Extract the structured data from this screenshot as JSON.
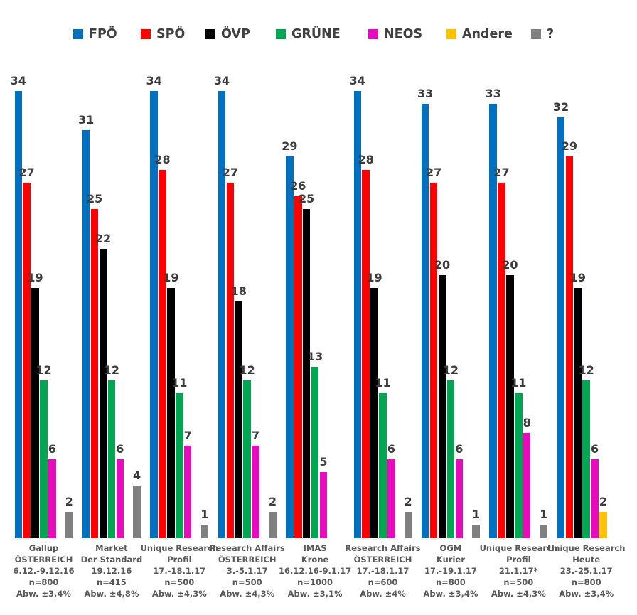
{
  "colors": {
    "fpoe": "#0070C0",
    "spoe": "#FF0000",
    "oevp": "#000000",
    "gruene": "#00A651",
    "neos": "#E60CBE",
    "andere": "#FFC000",
    "unknown": "#808080",
    "value_label": "#3C3C3C",
    "legend_text": "#404040",
    "footer_text": "#595959"
  },
  "chart_data": {
    "type": "bar",
    "title": "",
    "ylim": [
      0,
      34
    ],
    "grid": false,
    "legend_position": "top",
    "series_names": [
      "FPÖ",
      "SPÖ",
      "ÖVP",
      "GRÜNE",
      "NEOS",
      "Andere",
      "?"
    ],
    "series_slugs": [
      "fpoe",
      "spoe",
      "oevp",
      "gruene",
      "neos",
      "andere",
      "unknown"
    ],
    "series_colors": [
      "#0070C0",
      "#FF0000",
      "#000000",
      "#00A651",
      "#E60CBE",
      "#FFC000",
      "#808080"
    ],
    "groups": [
      {
        "label_lines": [
          "Gallup",
          "ÖSTERREICH",
          "6.12.-9.12.16",
          "n=800",
          "Abw. ±3,4%"
        ],
        "values": [
          34,
          27,
          19,
          12,
          6,
          null,
          2
        ]
      },
      {
        "label_lines": [
          "Market",
          "Der Standard",
          "19.12.16",
          "n=415",
          "Abw. ±4,8%"
        ],
        "values": [
          31,
          25,
          22,
          12,
          6,
          null,
          4
        ]
      },
      {
        "label_lines": [
          "Unique Research",
          "Profil",
          "17.-18.1.17",
          "n=500",
          "Abw. ±4,3%"
        ],
        "values": [
          34,
          28,
          19,
          11,
          7,
          null,
          1
        ]
      },
      {
        "label_lines": [
          "Research Affairs",
          "ÖSTERREICH",
          "3.-5.1.17",
          "n=500",
          "Abw. ±4,3%"
        ],
        "values": [
          34,
          27,
          18,
          12,
          7,
          null,
          2
        ]
      },
      {
        "label_lines": [
          "IMAS",
          "Krone",
          "16.12.16-9.1.17",
          "n=1000",
          "Abw. ±3,1%"
        ],
        "values": [
          29,
          26,
          25,
          13,
          5,
          null,
          null
        ]
      },
      {
        "label_lines": [
          "Research Affairs",
          "ÖSTERREICH",
          "17.-18.1.17",
          "n=600",
          "Abw. ±4%"
        ],
        "values": [
          34,
          28,
          19,
          11,
          6,
          null,
          2
        ]
      },
      {
        "label_lines": [
          "OGM",
          "Kurier",
          "17.-19.1.17",
          "n=800",
          "Abw. ±3,4%"
        ],
        "values": [
          33,
          27,
          20,
          12,
          6,
          null,
          1
        ]
      },
      {
        "label_lines": [
          "Unique Research",
          "Profil",
          "21.1.17*",
          "n=500",
          "Abw. ±4,3%"
        ],
        "values": [
          33,
          27,
          20,
          11,
          8,
          null,
          1
        ]
      },
      {
        "label_lines": [
          "Unique Research",
          "Heute",
          "23.-25.1.17",
          "n=800",
          "Abw. ±3,4%"
        ],
        "values": [
          32,
          29,
          19,
          12,
          6,
          2,
          null
        ]
      }
    ]
  }
}
